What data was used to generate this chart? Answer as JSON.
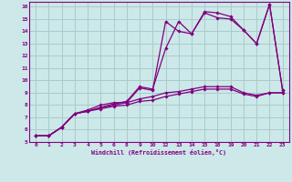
{
  "bg_color": "#cce8e8",
  "grid_color": "#aacccc",
  "line_color": "#800080",
  "xlabel": "Windchill (Refroidissement éolien,°C)",
  "xlim": [
    -0.5,
    19.5
  ],
  "ylim": [
    5,
    16.4
  ],
  "xtick_labels": [
    "0",
    "1",
    "2",
    "3",
    "4",
    "5",
    "6",
    "8",
    "9",
    "10",
    "12",
    "13",
    "14",
    "15",
    "18",
    "19",
    "20",
    "21",
    "22",
    "23"
  ],
  "ytick_labels": [
    "5",
    "6",
    "7",
    "8",
    "9",
    "10",
    "11",
    "12",
    "13",
    "14",
    "15",
    "16"
  ],
  "ytick_vals": [
    5,
    6,
    7,
    8,
    9,
    10,
    11,
    12,
    13,
    14,
    15,
    16
  ],
  "series": [
    {
      "xi": [
        0,
        1,
        2,
        3,
        4,
        5,
        6,
        7,
        8,
        9,
        10,
        11,
        12,
        13,
        14,
        15,
        16,
        17,
        18,
        19
      ],
      "y": [
        5.5,
        5.5,
        6.2,
        7.3,
        7.5,
        7.8,
        8.1,
        8.3,
        9.5,
        9.3,
        12.6,
        14.8,
        13.8,
        15.6,
        15.5,
        15.2,
        14.1,
        13.0,
        16.2,
        9.2
      ]
    },
    {
      "xi": [
        0,
        1,
        2,
        3,
        4,
        5,
        6,
        7,
        8,
        9,
        10,
        11,
        12,
        13,
        14,
        15,
        16,
        17,
        18,
        19
      ],
      "y": [
        5.5,
        5.5,
        6.2,
        7.3,
        7.6,
        8.0,
        8.2,
        8.2,
        9.4,
        9.2,
        14.8,
        14.0,
        13.8,
        15.5,
        15.1,
        15.0,
        14.1,
        13.0,
        16.2,
        9.2
      ]
    },
    {
      "xi": [
        0,
        1,
        2,
        3,
        4,
        5,
        6,
        7,
        8,
        9,
        10,
        11,
        12,
        13,
        14,
        15,
        16,
        17,
        18,
        19
      ],
      "y": [
        5.5,
        5.5,
        6.2,
        7.3,
        7.5,
        7.8,
        8.0,
        8.2,
        8.5,
        8.7,
        9.0,
        9.1,
        9.3,
        9.5,
        9.5,
        9.5,
        9.0,
        8.8,
        9.0,
        9.0
      ]
    },
    {
      "xi": [
        0,
        1,
        2,
        3,
        4,
        5,
        6,
        7,
        8,
        9,
        10,
        11,
        12,
        13,
        14,
        15,
        16,
        17,
        18,
        19
      ],
      "y": [
        5.5,
        5.5,
        6.2,
        7.3,
        7.5,
        7.7,
        7.9,
        8.0,
        8.3,
        8.4,
        8.7,
        8.9,
        9.1,
        9.3,
        9.3,
        9.3,
        8.9,
        8.7,
        9.0,
        9.0
      ]
    }
  ]
}
